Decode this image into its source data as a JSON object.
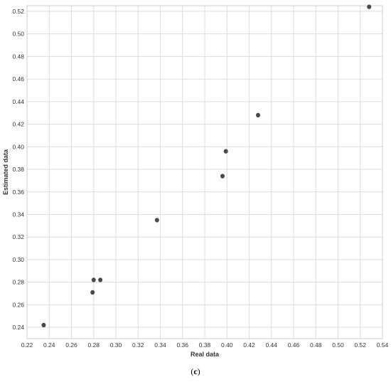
{
  "caption": {
    "open": "(",
    "letter": "c",
    "close": ")"
  },
  "colors": {
    "grid": "#dcdcdc",
    "frame": "#cfcfcf",
    "point": "#4a4a4a"
  },
  "chart_data": {
    "type": "scatter",
    "title": "",
    "xlabel": "Real data",
    "ylabel": "Estimated data",
    "xlim": [
      0.22,
      0.54
    ],
    "ylim": [
      0.23,
      0.525
    ],
    "xticks": [
      "0.22",
      "0.24",
      "0.26",
      "0.28",
      "0.30",
      "0.32",
      "0.34",
      "0.36",
      "0.38",
      "0.40",
      "0.42",
      "0.44",
      "0.46",
      "0.48",
      "0.50",
      "0.52",
      "0.54"
    ],
    "yticks": [
      "0.24",
      "0.26",
      "0.28",
      "0.30",
      "0.32",
      "0.34",
      "0.36",
      "0.38",
      "0.40",
      "0.42",
      "0.44",
      "0.46",
      "0.48",
      "0.50",
      "0.52"
    ],
    "grid": true,
    "legend": "none",
    "series": [
      {
        "points": [
          {
            "x": 0.235,
            "y": 0.242
          },
          {
            "x": 0.279,
            "y": 0.271
          },
          {
            "x": 0.28,
            "y": 0.282
          },
          {
            "x": 0.286,
            "y": 0.282
          },
          {
            "x": 0.337,
            "y": 0.335
          },
          {
            "x": 0.396,
            "y": 0.374
          },
          {
            "x": 0.399,
            "y": 0.396
          },
          {
            "x": 0.428,
            "y": 0.428
          },
          {
            "x": 0.528,
            "y": 0.524
          }
        ]
      }
    ]
  }
}
